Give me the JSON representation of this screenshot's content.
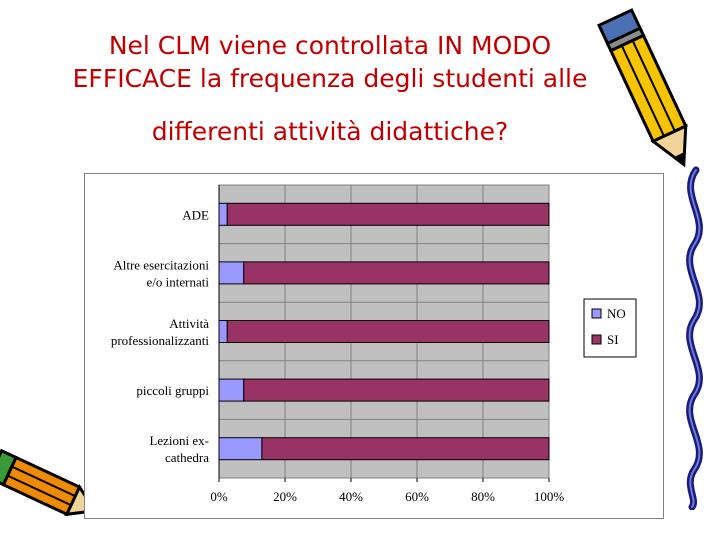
{
  "title": {
    "line1": "Nel CLM viene controllata IN MODO",
    "line2": "EFFICACE la frequenza degli studenti alle",
    "line3": "differenti attività didattiche?"
  },
  "colors": {
    "title": "#c00000",
    "plot_area": "#c0c0c0",
    "panel_border": "#808080",
    "NO": "#9999ff",
    "SI": "#993366"
  },
  "icons": {
    "pencil_right": "pencil-icon",
    "pencil_left": "pencil-icon",
    "decoration": "wavy-line-icon"
  },
  "chart_data": {
    "type": "bar",
    "orientation": "horizontal",
    "stacked": "percent",
    "categories": [
      [
        "ADE"
      ],
      [
        "Altre esercitazioni",
        "e/o internati"
      ],
      [
        "Attività",
        "professionalizzanti"
      ],
      [
        "piccoli gruppi"
      ],
      [
        "Lezioni ex-",
        "cathedra"
      ]
    ],
    "series": [
      {
        "name": "NO",
        "values": [
          2.5,
          7.5,
          2.5,
          7.5,
          13.0
        ]
      },
      {
        "name": "SI",
        "values": [
          97.5,
          92.5,
          97.5,
          92.5,
          87.0
        ]
      }
    ],
    "xticks": [
      "0%",
      "20%",
      "40%",
      "60%",
      "80%",
      "100%"
    ],
    "xlim": [
      0,
      100
    ],
    "grid": true,
    "legend": "right"
  }
}
